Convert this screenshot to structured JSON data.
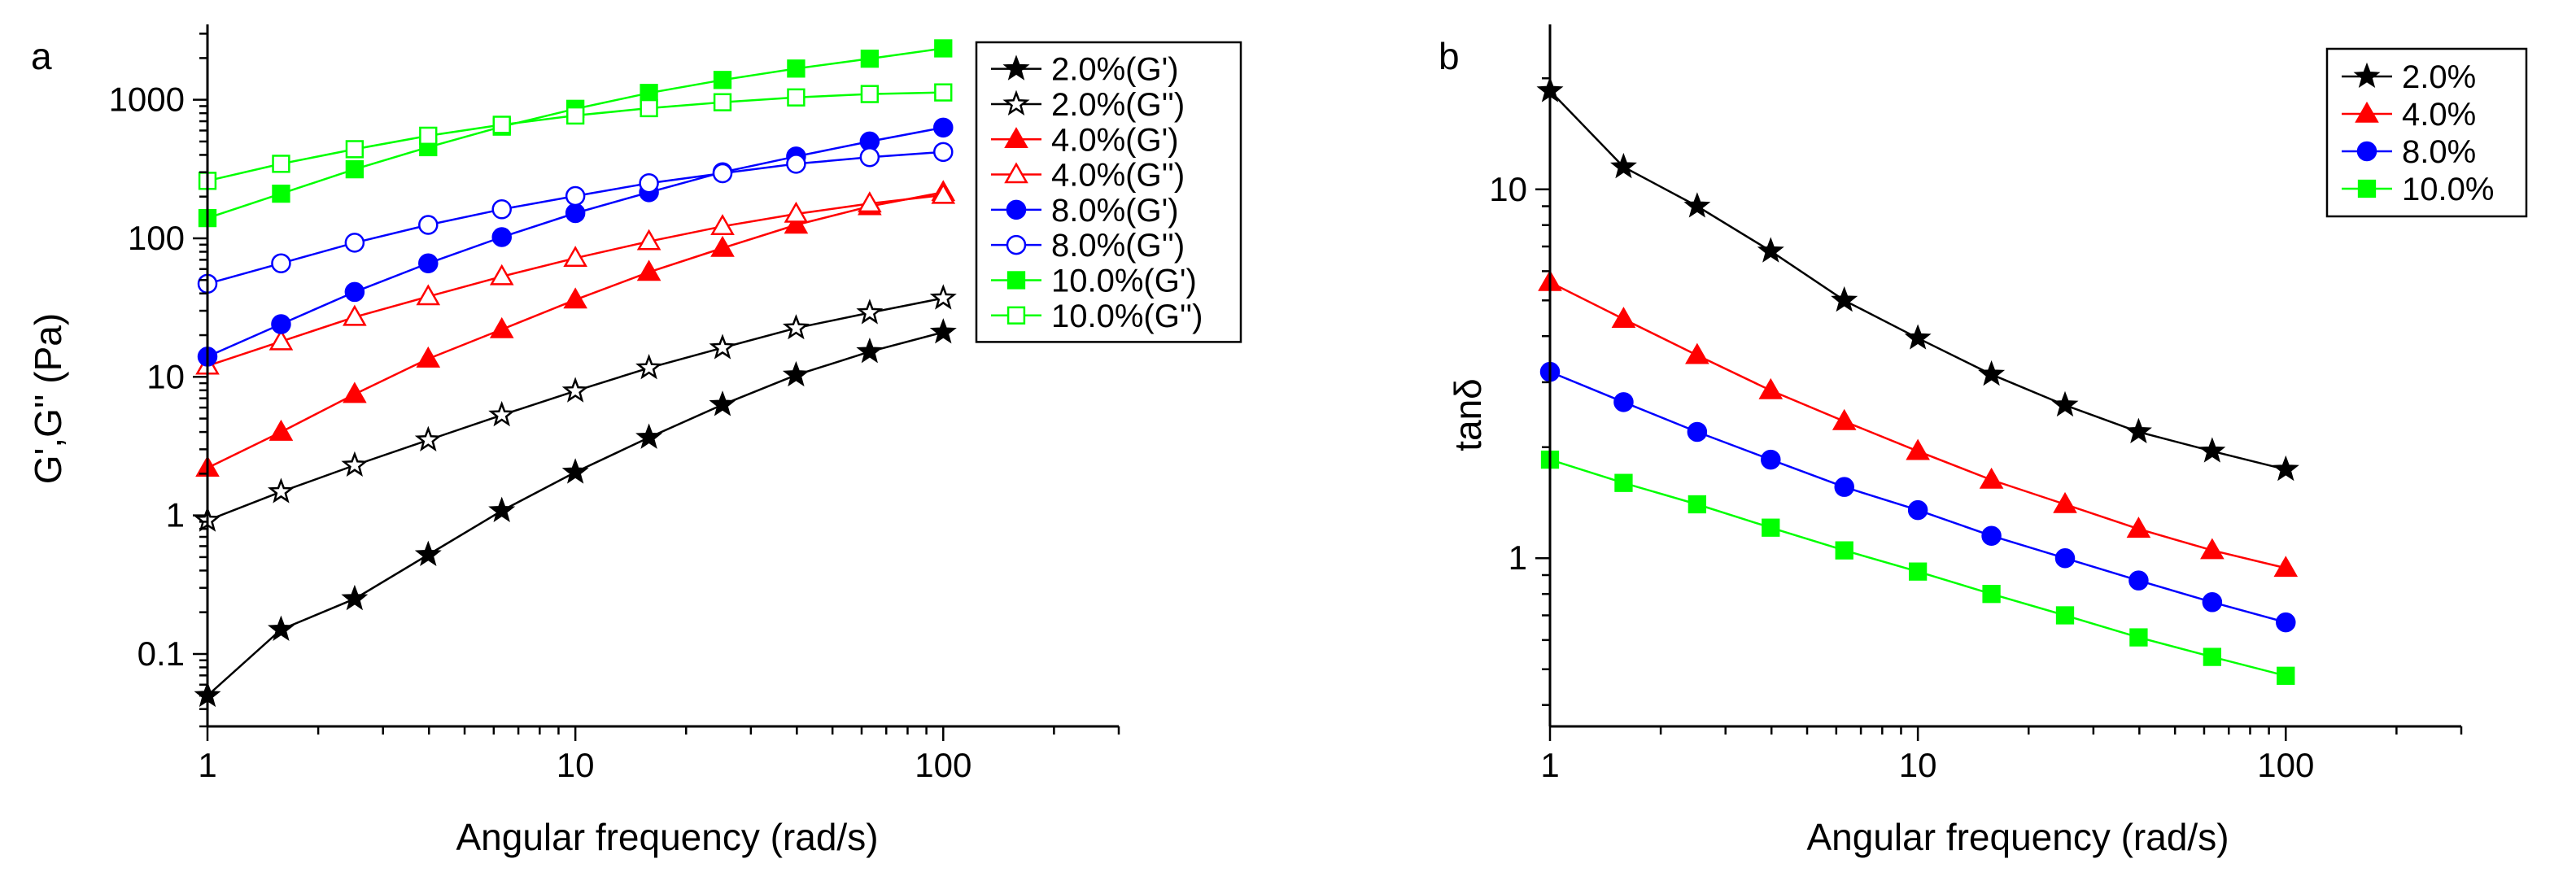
{
  "figure": {
    "panel_labels": [
      "a",
      "b"
    ]
  },
  "chart_data": [
    {
      "type": "line",
      "panel": "a",
      "title": "",
      "xlabel": "Angular frequency (rad/s)",
      "ylabel": "G',G'' (Pa)",
      "xscale": "log",
      "yscale": "log",
      "xlim": [
        1,
        300
      ],
      "ylim": [
        0.03,
        3500
      ],
      "xticks": [
        {
          "v": 1,
          "label": "1"
        },
        {
          "v": 10,
          "label": "10"
        },
        {
          "v": 100,
          "label": "100"
        }
      ],
      "yticks": [
        {
          "v": 0.1,
          "label": "0.1"
        },
        {
          "v": 1,
          "label": "1"
        },
        {
          "v": 10,
          "label": "10"
        },
        {
          "v": 100,
          "label": "100"
        },
        {
          "v": 1000,
          "label": "1000"
        }
      ],
      "legend_position": "top-right",
      "x": [
        1,
        1.585,
        2.512,
        3.981,
        6.31,
        10,
        15.85,
        25.12,
        39.81,
        63.1,
        100
      ],
      "series": [
        {
          "name": "2.0%(G')",
          "color": "#000000",
          "marker": "star",
          "filled": true,
          "values": [
            0.05,
            0.15,
            0.25,
            0.52,
            1.08,
            2.05,
            3.65,
            6.3,
            10.3,
            15.2,
            21
          ]
        },
        {
          "name": "2.0%(G'')",
          "color": "#000000",
          "marker": "star",
          "filled": false,
          "values": [
            0.92,
            1.48,
            2.3,
            3.5,
            5.3,
            7.9,
            11.6,
            16.2,
            22.5,
            29,
            37
          ]
        },
        {
          "name": "4.0%(G')",
          "color": "#ff0000",
          "marker": "triangle",
          "filled": true,
          "values": [
            2.2,
            4,
            7.5,
            13.5,
            22,
            36,
            57,
            85,
            125,
            170,
            215
          ]
        },
        {
          "name": "4.0%(G'')",
          "color": "#ff0000",
          "marker": "triangle",
          "filled": false,
          "values": [
            12,
            18,
            27,
            38,
            53,
            72,
            95,
            122,
            150,
            178,
            205
          ]
        },
        {
          "name": "8.0%(G')",
          "color": "#0000ff",
          "marker": "circle",
          "filled": true,
          "values": [
            14,
            24,
            41,
            66,
            102,
            152,
            215,
            300,
            390,
            500,
            630
          ]
        },
        {
          "name": "8.0%(G'')",
          "color": "#0000ff",
          "marker": "circle",
          "filled": false,
          "values": [
            47,
            66,
            93,
            125,
            162,
            202,
            250,
            295,
            345,
            385,
            420
          ]
        },
        {
          "name": "10.0%(G')",
          "color": "#00ff00",
          "marker": "square",
          "filled": true,
          "values": [
            140,
            210,
            315,
            455,
            640,
            860,
            1120,
            1390,
            1680,
            1980,
            2350
          ]
        },
        {
          "name": "10.0%(G'')",
          "color": "#00ff00",
          "marker": "square",
          "filled": false,
          "values": [
            260,
            345,
            440,
            550,
            660,
            770,
            870,
            960,
            1040,
            1100,
            1130
          ]
        }
      ]
    },
    {
      "type": "line",
      "panel": "b",
      "title": "",
      "xlabel": "Angular frequency (rad/s)",
      "ylabel": "tanδ",
      "xscale": "log",
      "yscale": "log",
      "xlim": [
        1,
        300
      ],
      "ylim": [
        0.35,
        28
      ],
      "xticks": [
        {
          "v": 1,
          "label": "1"
        },
        {
          "v": 10,
          "label": "10"
        },
        {
          "v": 100,
          "label": "100"
        }
      ],
      "yticks": [
        {
          "v": 1,
          "label": "1"
        },
        {
          "v": 10,
          "label": "10"
        }
      ],
      "legend_position": "top-right",
      "x": [
        1,
        1.585,
        2.512,
        3.981,
        6.31,
        10,
        15.85,
        25.12,
        39.81,
        63.1,
        100
      ],
      "series": [
        {
          "name": "2.0%",
          "color": "#000000",
          "marker": "star",
          "filled": true,
          "values": [
            18.5,
            11.5,
            9.0,
            6.8,
            5.0,
            3.95,
            3.15,
            2.6,
            2.2,
            1.95,
            1.74
          ]
        },
        {
          "name": "4.0%",
          "color": "#ff0000",
          "marker": "triangle",
          "filled": true,
          "values": [
            5.6,
            4.45,
            3.55,
            2.85,
            2.35,
            1.95,
            1.63,
            1.4,
            1.2,
            1.05,
            0.94
          ]
        },
        {
          "name": "8.0%",
          "color": "#0000ff",
          "marker": "circle",
          "filled": true,
          "values": [
            3.2,
            2.65,
            2.2,
            1.85,
            1.56,
            1.35,
            1.15,
            1.0,
            0.87,
            0.76,
            0.67
          ]
        },
        {
          "name": "10.0%",
          "color": "#00ff00",
          "marker": "square",
          "filled": true,
          "values": [
            1.85,
            1.6,
            1.4,
            1.21,
            1.05,
            0.92,
            0.8,
            0.7,
            0.61,
            0.54,
            0.48
          ]
        }
      ]
    }
  ]
}
